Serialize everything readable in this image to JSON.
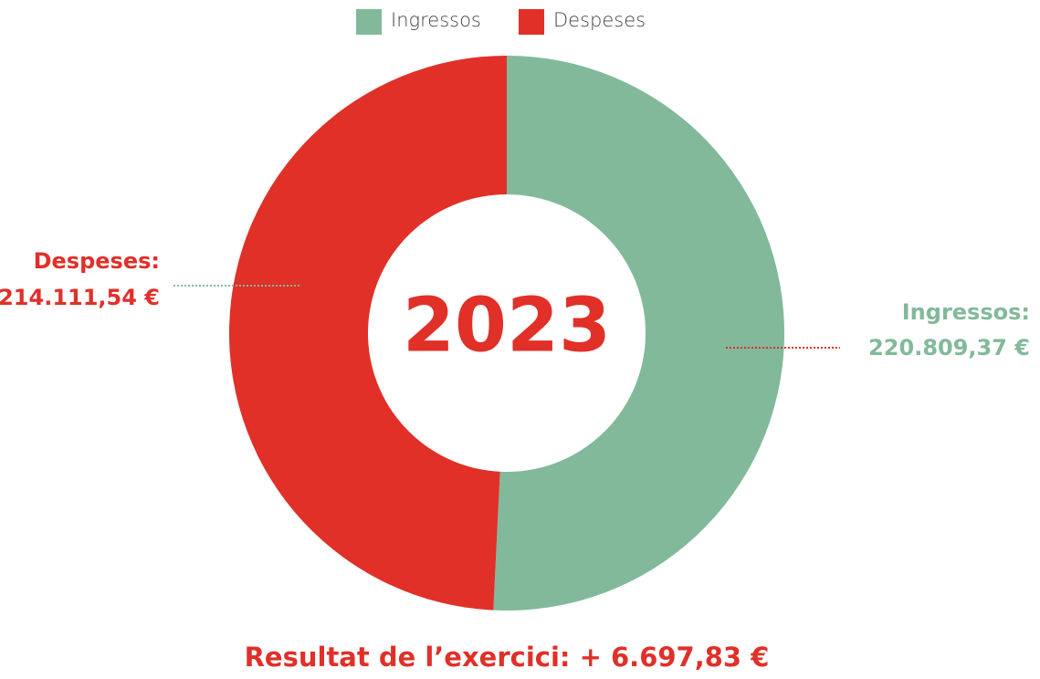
{
  "chart_data": {
    "type": "pie",
    "donut": true,
    "categories": [
      "Ingressos",
      "Despeses"
    ],
    "values": [
      220809.37,
      214111.54
    ],
    "value_labels": [
      "220.809,37 €",
      "214.111,54 €"
    ],
    "slice_labels": [
      "Ingressos:",
      "Despeses:"
    ],
    "colors": [
      "#82b99a",
      "#e03028"
    ],
    "center_label": "2023",
    "annotation": "Resultat de l’exercici: + 6.697,83 €",
    "legend": "top"
  }
}
